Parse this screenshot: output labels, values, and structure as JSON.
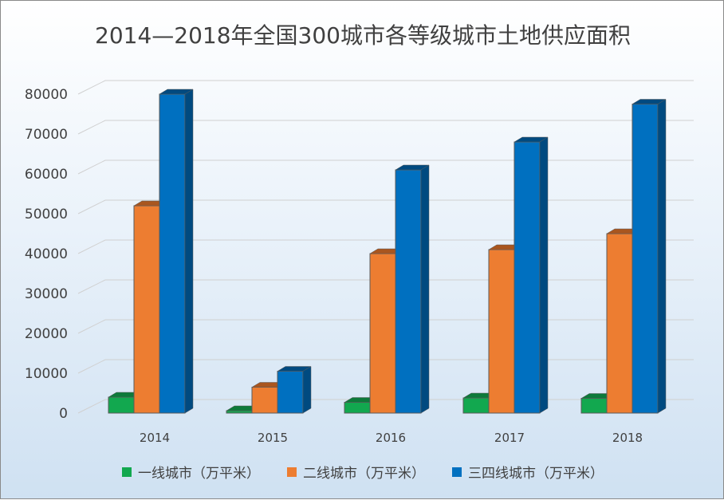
{
  "chart_data": {
    "type": "bar",
    "title": "2014—2018年全国300城市各等级城市土地供应面积",
    "categories": [
      "2014",
      "2015",
      "2016",
      "2017",
      "2018"
    ],
    "series": [
      {
        "name": "一线城市（万平米）",
        "values": [
          4000,
          600,
          2700,
          3800,
          3700
        ],
        "color": "#12a84f",
        "dark": "#0d7a3a"
      },
      {
        "name": "二线城市（万平米）",
        "values": [
          52000,
          6500,
          40000,
          41000,
          45000
        ],
        "color": "#ed7d31",
        "dark": "#a9561f"
      },
      {
        "name": "三四线城市（万平米）",
        "values": [
          80000,
          10500,
          61000,
          68000,
          77500
        ],
        "color": "#0070c0",
        "dark": "#004a80"
      }
    ],
    "ylim": [
      0,
      80000
    ],
    "yticks": [
      "0",
      "10000",
      "20000",
      "30000",
      "40000",
      "50000",
      "60000",
      "70000",
      "80000"
    ],
    "grid": true,
    "legend": "bottom"
  }
}
